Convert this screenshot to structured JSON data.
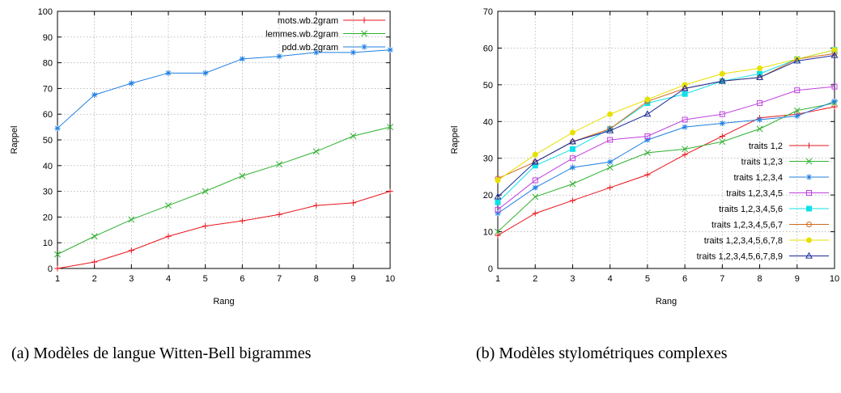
{
  "colors": {
    "red": "#e8141c",
    "green": "#2fb12f",
    "blue": "#1f7fe0",
    "magenta": "#c040e0",
    "cyan": "#10e0e8",
    "orange": "#d2691e",
    "yellow": "#e8e000",
    "navy": "#1a2a9a",
    "grid": "#9a9a9a",
    "axis": "#000000"
  },
  "captions": {
    "a": "(a) Modèles de langue Witten-Bell bigrammes",
    "b": "(b) Modèles stylométriques complexes"
  },
  "chart_data": [
    {
      "type": "line",
      "title": "",
      "xlabel": "Rang",
      "ylabel": "Rappel",
      "x": [
        1,
        2,
        3,
        4,
        5,
        6,
        7,
        8,
        9,
        10
      ],
      "xlim": [
        1,
        10
      ],
      "ylim": [
        0,
        100
      ],
      "yticks": [
        0,
        10,
        20,
        30,
        40,
        50,
        60,
        70,
        80,
        90,
        100
      ],
      "grid": true,
      "legend_position": "top-right",
      "series": [
        {
          "name": "mots.wb.2gram",
          "color": "#e8141c",
          "marker": "plus",
          "values": [
            0,
            2.5,
            7,
            12.5,
            16.5,
            18.5,
            21,
            24.5,
            25.5,
            30
          ]
        },
        {
          "name": "lemmes.wb.2gram",
          "color": "#2fb12f",
          "marker": "x",
          "values": [
            5.5,
            12.5,
            19,
            24.5,
            30,
            36,
            40.5,
            45.5,
            51.5,
            55
          ]
        },
        {
          "name": "pdd.wb.2gram",
          "color": "#1f7fe0",
          "marker": "star",
          "values": [
            54.5,
            67.5,
            72,
            76,
            76,
            81.5,
            82.5,
            84,
            84,
            85
          ]
        }
      ]
    },
    {
      "type": "line",
      "title": "",
      "xlabel": "Rang",
      "ylabel": "Rappel",
      "x": [
        1,
        2,
        3,
        4,
        5,
        6,
        7,
        8,
        9,
        10
      ],
      "xlim": [
        1,
        10
      ],
      "ylim": [
        0,
        70
      ],
      "yticks": [
        0,
        10,
        20,
        30,
        40,
        50,
        60,
        70
      ],
      "grid": true,
      "legend_position": "bottom-right",
      "series": [
        {
          "name": "traits 1,2",
          "color": "#e8141c",
          "marker": "plus",
          "values": [
            9,
            15,
            18.5,
            22,
            25.5,
            31,
            36,
            41,
            42,
            44
          ]
        },
        {
          "name": "traits 1,2,3",
          "color": "#2fb12f",
          "marker": "x",
          "values": [
            10,
            19.5,
            23,
            27.5,
            31.5,
            32.5,
            34.5,
            38,
            43,
            45
          ]
        },
        {
          "name": "traits 1,2,3,4",
          "color": "#1f7fe0",
          "marker": "star",
          "values": [
            15,
            22,
            27.5,
            29,
            35,
            38.5,
            39.5,
            40.5,
            41.5,
            45.5
          ]
        },
        {
          "name": "traits 1,2,3,4,5",
          "color": "#c040e0",
          "marker": "square",
          "values": [
            16,
            24,
            30,
            35,
            36,
            40.5,
            42,
            45,
            48.5,
            49.5
          ]
        },
        {
          "name": "traits 1,2,3,4,5,6",
          "color": "#10e0e8",
          "marker": "filled-square",
          "values": [
            18,
            28,
            32.5,
            38,
            45,
            47.5,
            51,
            53,
            57,
            59.5
          ]
        },
        {
          "name": "traits 1,2,3,4,5,6,7",
          "color": "#d2691e",
          "marker": "circle",
          "values": [
            24.5,
            29,
            34.5,
            38,
            45.5,
            49,
            51,
            52,
            57,
            58.5
          ]
        },
        {
          "name": "traits 1,2,3,4,5,6,7,8",
          "color": "#e8e000",
          "marker": "filled-circle",
          "values": [
            24,
            31,
            37,
            42,
            46,
            50,
            53,
            54.5,
            57,
            59.5
          ]
        },
        {
          "name": "traits 1,2,3,4,5,6,7,8,9",
          "color": "#1a2a9a",
          "marker": "triangle",
          "values": [
            19.5,
            29,
            34.5,
            37.5,
            42,
            49,
            51,
            52,
            56.5,
            58
          ]
        }
      ]
    }
  ]
}
